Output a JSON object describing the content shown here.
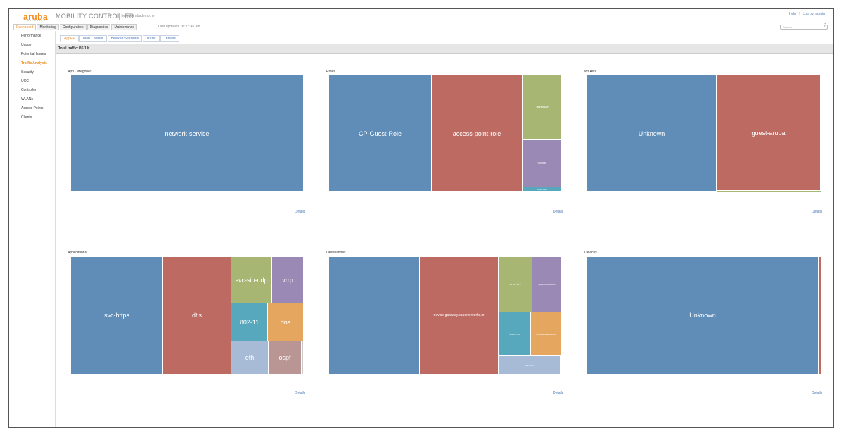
{
  "header": {
    "logo_text": "aruba",
    "logo_sub": "NETWORKS",
    "product": "MOBILITY CONTROLLER",
    "host": "tokyo.arubademo.net",
    "links": [
      "Help",
      "Log out admin"
    ]
  },
  "nav": {
    "tabs": [
      "Dashboard",
      "Monitoring",
      "Configuration",
      "Diagnostics",
      "Maintenance"
    ],
    "active": "Dashboard",
    "last_updated": "Last updated: 06:27:45 am",
    "search_placeholder": "Search"
  },
  "sidebar": {
    "items": [
      "Performance",
      "Usage",
      "Potential Issues",
      "Traffic Analysis",
      "Security",
      "UCC",
      "Controller",
      "WLANs",
      "Access Points",
      "Clients"
    ],
    "active": "Traffic Analysis"
  },
  "subtabs": {
    "items": [
      "AppRF",
      "Web Content",
      "Blocked Sessions",
      "Traffic",
      "Threats"
    ],
    "active": "AppRF"
  },
  "total_traffic": "Total traffic: 85.1 K",
  "details_label": "Details",
  "panels": {
    "app_categories": {
      "title": "App Categories",
      "tiles": [
        "network-service"
      ]
    },
    "roles": {
      "title": "Roles",
      "tiles": [
        "CP-Guest-Role",
        "access-point-role",
        "Unknown",
        "voice",
        "BYOD Auth"
      ]
    },
    "wlans": {
      "title": "WLANs",
      "tiles": [
        "Unknown",
        "guest-aruba"
      ]
    },
    "applications": {
      "title": "Applications",
      "tiles": [
        "svc-https",
        "dtls",
        "svc-sip-udp",
        "vrrp",
        "802-11",
        "dns",
        "eth",
        "ospf"
      ]
    },
    "destinations": {
      "title": "Destinations",
      "tiles": [
        "device-gateway.capenetworks.io",
        "10.79.216.6",
        "hpe.portfolus.com",
        "224.0.0.18",
        "tk-dfu.arubademo.net",
        "224.0.0.5"
      ]
    },
    "devices": {
      "title": "Devices",
      "tiles": [
        "Unknown"
      ]
    }
  },
  "colors": {
    "brand": "#f08b1d",
    "link": "#4a78b5",
    "tile_blue": "#5f8db8",
    "tile_red": "#bd6a62",
    "tile_green": "#a7b672",
    "tile_purple": "#9a89b4",
    "tile_cyan": "#58a8bd",
    "tile_orange": "#e5a660"
  }
}
